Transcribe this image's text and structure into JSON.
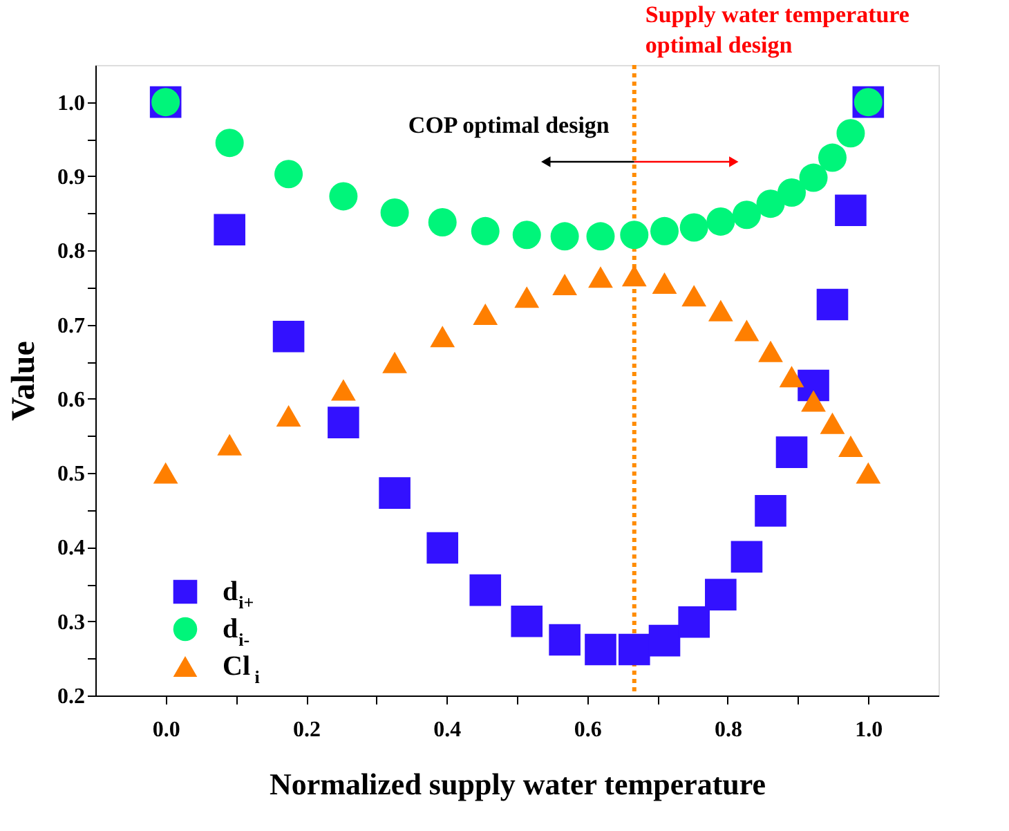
{
  "chart_data": {
    "type": "scatter",
    "xlabel": "Normalized supply water temperature",
    "ylabel": "Value",
    "x": [
      0,
      0.091,
      0.175,
      0.253,
      0.326,
      0.394,
      0.455,
      0.514,
      0.568,
      0.619,
      0.667,
      0.71,
      0.752,
      0.79,
      0.827,
      0.861,
      0.891,
      0.922,
      0.949,
      0.975,
      1.0
    ],
    "series": [
      {
        "name": "d$_{i+}$",
        "color": "#3311ff",
        "marker": "square",
        "values": [
          1.0,
          0.828,
          0.684,
          0.568,
          0.473,
          0.399,
          0.342,
          0.3,
          0.275,
          0.262,
          0.262,
          0.274,
          0.299,
          0.336,
          0.387,
          0.449,
          0.528,
          0.618,
          0.727,
          0.854,
          1.0
        ]
      },
      {
        "name": "d$_{i-}$",
        "color": "#00f57a",
        "marker": "circle",
        "values": [
          1.0,
          0.945,
          0.903,
          0.873,
          0.851,
          0.838,
          0.826,
          0.821,
          0.819,
          0.819,
          0.821,
          0.826,
          0.831,
          0.839,
          0.848,
          0.863,
          0.878,
          0.898,
          0.925,
          0.958,
          1.0
        ]
      },
      {
        "name": "Cl$_{i}$",
        "color": "#ff7f00",
        "marker": "triangle",
        "values": [
          0.5,
          0.538,
          0.577,
          0.612,
          0.649,
          0.684,
          0.714,
          0.737,
          0.754,
          0.764,
          0.766,
          0.756,
          0.739,
          0.719,
          0.692,
          0.664,
          0.63,
          0.597,
          0.567,
          0.536,
          0.5
        ]
      }
    ],
    "xlim": [
      -0.1,
      1.1
    ],
    "ylim": [
      0.2,
      1.05
    ],
    "xticks": [
      {
        "value": 0,
        "label": "0.0"
      },
      {
        "value": 0.1,
        "label": null
      },
      0.2,
      {
        "value": 0.3,
        "label": null
      },
      0.4,
      {
        "value": 0.5,
        "label": null
      },
      0.6,
      {
        "value": 0.7,
        "label": null
      },
      0.8,
      {
        "value": 0.9,
        "label": null
      },
      {
        "value": 1.0,
        "label": "1.0"
      }
    ],
    "yticks": [
      0.2,
      {
        "value": 0.25,
        "label": null
      },
      0.3,
      {
        "value": 0.35,
        "label": null
      },
      0.4,
      {
        "value": 0.45,
        "label": null
      },
      0.5,
      {
        "value": 0.55,
        "label": null
      },
      0.6,
      {
        "value": 0.65,
        "label": null
      },
      0.7,
      {
        "value": 0.75,
        "label": null
      },
      0.8,
      {
        "value": 0.85,
        "label": null
      },
      0.9,
      {
        "value": 0.95,
        "label": null
      },
      {
        "value": 1.0,
        "label": "1.0"
      }
    ],
    "ref_lines": [
      {
        "axis": "x",
        "value": 0.667,
        "color": "#ff8c00",
        "line_style": "dotted"
      }
    ],
    "annotations": [
      "COP optimal  design",
      "Supply water temperature\noptimal design"
    ],
    "legend": "bottom left",
    "grid": false
  }
}
